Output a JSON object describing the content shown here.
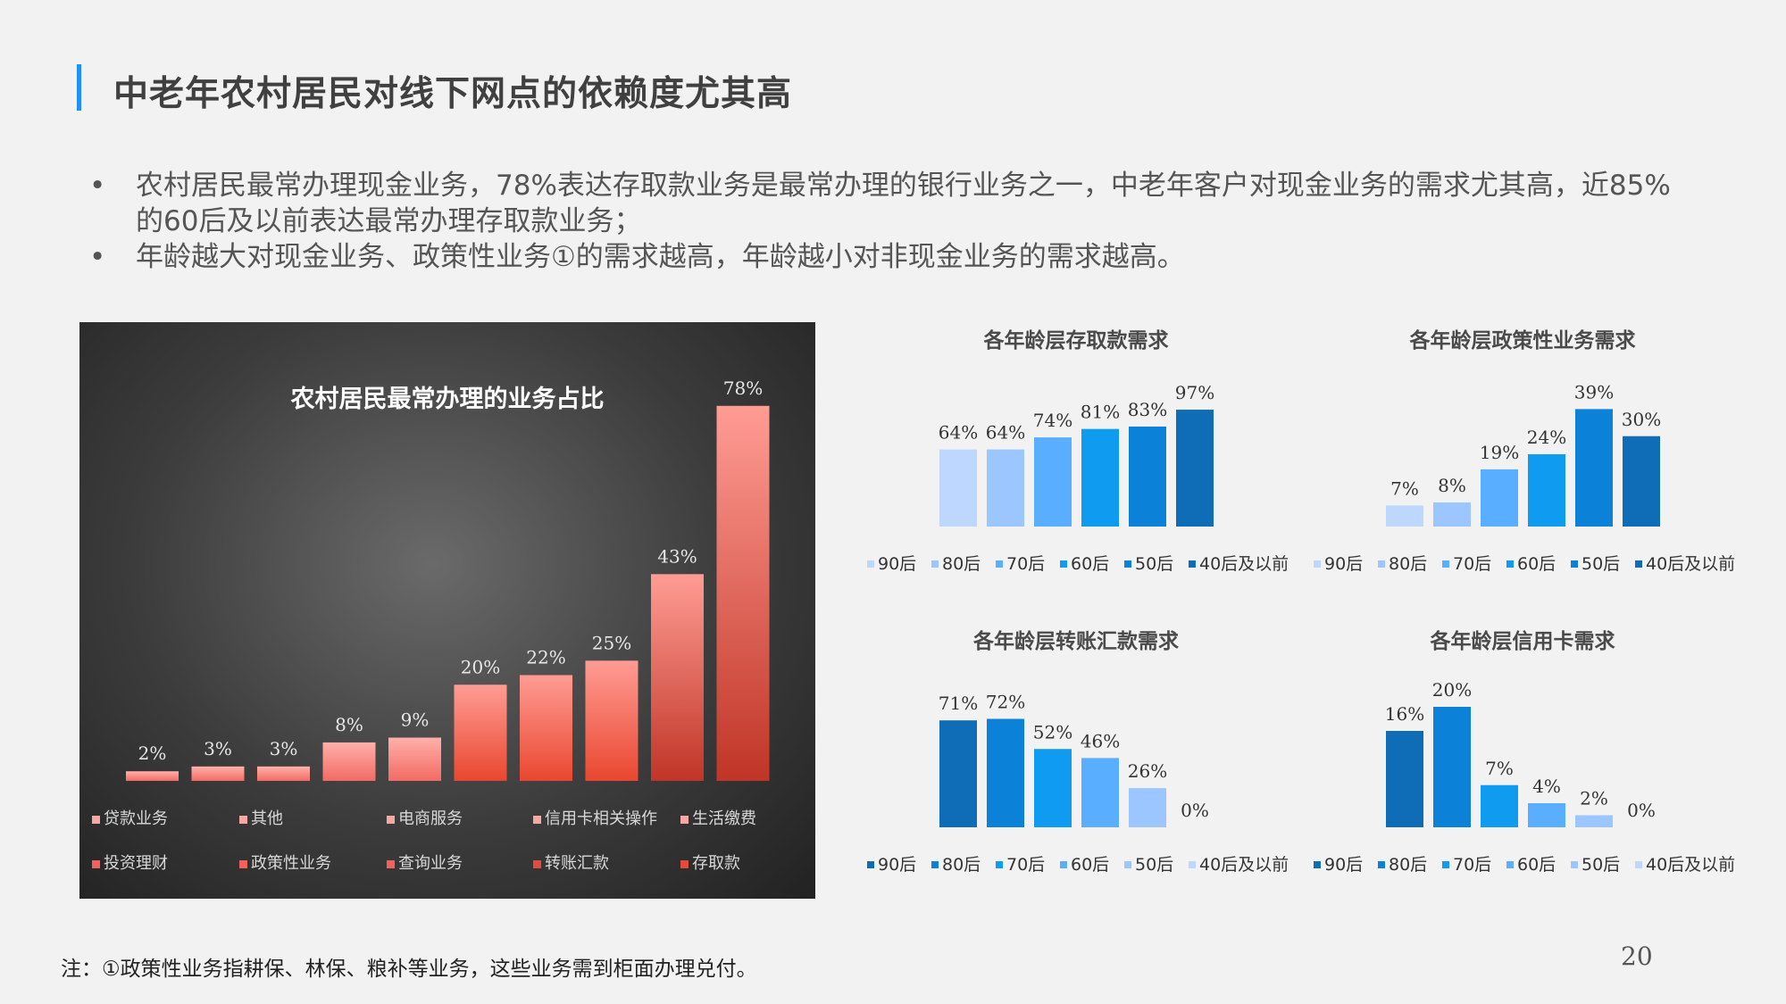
{
  "page": {
    "title": "中老年农村居民对线下网点的依赖度尤其高",
    "bullets": [
      "农村居民最常办理现金业务，78%表达存取款业务是最常办理的银行业务之一，中老年客户对现金业务的需求尤其高，近85%的60后及以前表达最常办理存取款业务；",
      "年龄越大对现金业务、政策性业务①的需求越高，年龄越小对非现金业务的需求越高。"
    ],
    "footnote": "注：①政策性业务指耕保、林保、粮补等业务，这些业务需到柜面办理兑付。",
    "page_number": "20"
  },
  "chart_data": [
    {
      "type": "bar",
      "title": "农村居民最常办理的业务占比",
      "categories": [
        "贷款业务",
        "其他",
        "电商服务",
        "信用卡相关操作",
        "生活缴费",
        "投资理财",
        "政策性业务",
        "查询业务",
        "转账汇款",
        "存取款"
      ],
      "values": [
        2,
        3,
        3,
        8,
        9,
        20,
        22,
        25,
        43,
        78
      ],
      "value_labels": [
        "2%",
        "3%",
        "3%",
        "8%",
        "9%",
        "20%",
        "22%",
        "25%",
        "43%",
        "78%"
      ],
      "ylim": [
        0,
        80
      ],
      "legend_position": "bottom"
    },
    {
      "type": "bar",
      "title": "各年龄层存取款需求",
      "categories": [
        "90后",
        "80后",
        "70后",
        "60后",
        "50后",
        "40后及以前"
      ],
      "values": [
        64,
        64,
        74,
        81,
        83,
        97
      ],
      "value_labels": [
        "64%",
        "64%",
        "74%",
        "81%",
        "83%",
        "97%"
      ],
      "colors": [
        "#bdd7ff",
        "#9cc6ff",
        "#5aaeff",
        "#0f9bf0",
        "#0b82d8",
        "#0f6db8"
      ],
      "ylim": [
        0,
        100
      ],
      "legend_position": "bottom"
    },
    {
      "type": "bar",
      "title": "各年龄层政策性业务需求",
      "categories": [
        "90后",
        "80后",
        "70后",
        "60后",
        "50后",
        "40后及以前"
      ],
      "values": [
        7,
        8,
        19,
        24,
        39,
        30
      ],
      "value_labels": [
        "7%",
        "8%",
        "19%",
        "24%",
        "39%",
        "30%"
      ],
      "colors": [
        "#bdd7ff",
        "#9cc6ff",
        "#5aaeff",
        "#0f9bf0",
        "#0b82d8",
        "#0f6db8"
      ],
      "ylim": [
        0,
        40
      ],
      "legend_position": "bottom"
    },
    {
      "type": "bar",
      "title": "各年龄层转账汇款需求",
      "categories": [
        "90后",
        "80后",
        "70后",
        "60后",
        "50后",
        "40后及以前"
      ],
      "values": [
        71,
        72,
        52,
        46,
        26,
        0
      ],
      "value_labels": [
        "71%",
        "72%",
        "52%",
        "46%",
        "26%",
        "0%"
      ],
      "colors": [
        "#0f6db8",
        "#0b82d8",
        "#0f9bf0",
        "#5aaeff",
        "#9cc6ff",
        "#bdd7ff"
      ],
      "ylim": [
        0,
        80
      ],
      "legend_position": "bottom"
    },
    {
      "type": "bar",
      "title": "各年龄层信用卡需求",
      "categories": [
        "90后",
        "80后",
        "70后",
        "60后",
        "50后",
        "40后及以前"
      ],
      "values": [
        16,
        20,
        7,
        4,
        2,
        0
      ],
      "value_labels": [
        "16%",
        "20%",
        "7%",
        "4%",
        "2%",
        "0%"
      ],
      "colors": [
        "#0f6db8",
        "#0b82d8",
        "#0f9bf0",
        "#5aaeff",
        "#9cc6ff",
        "#bdd7ff"
      ],
      "ylim": [
        0,
        20
      ],
      "legend_position": "bottom"
    }
  ]
}
